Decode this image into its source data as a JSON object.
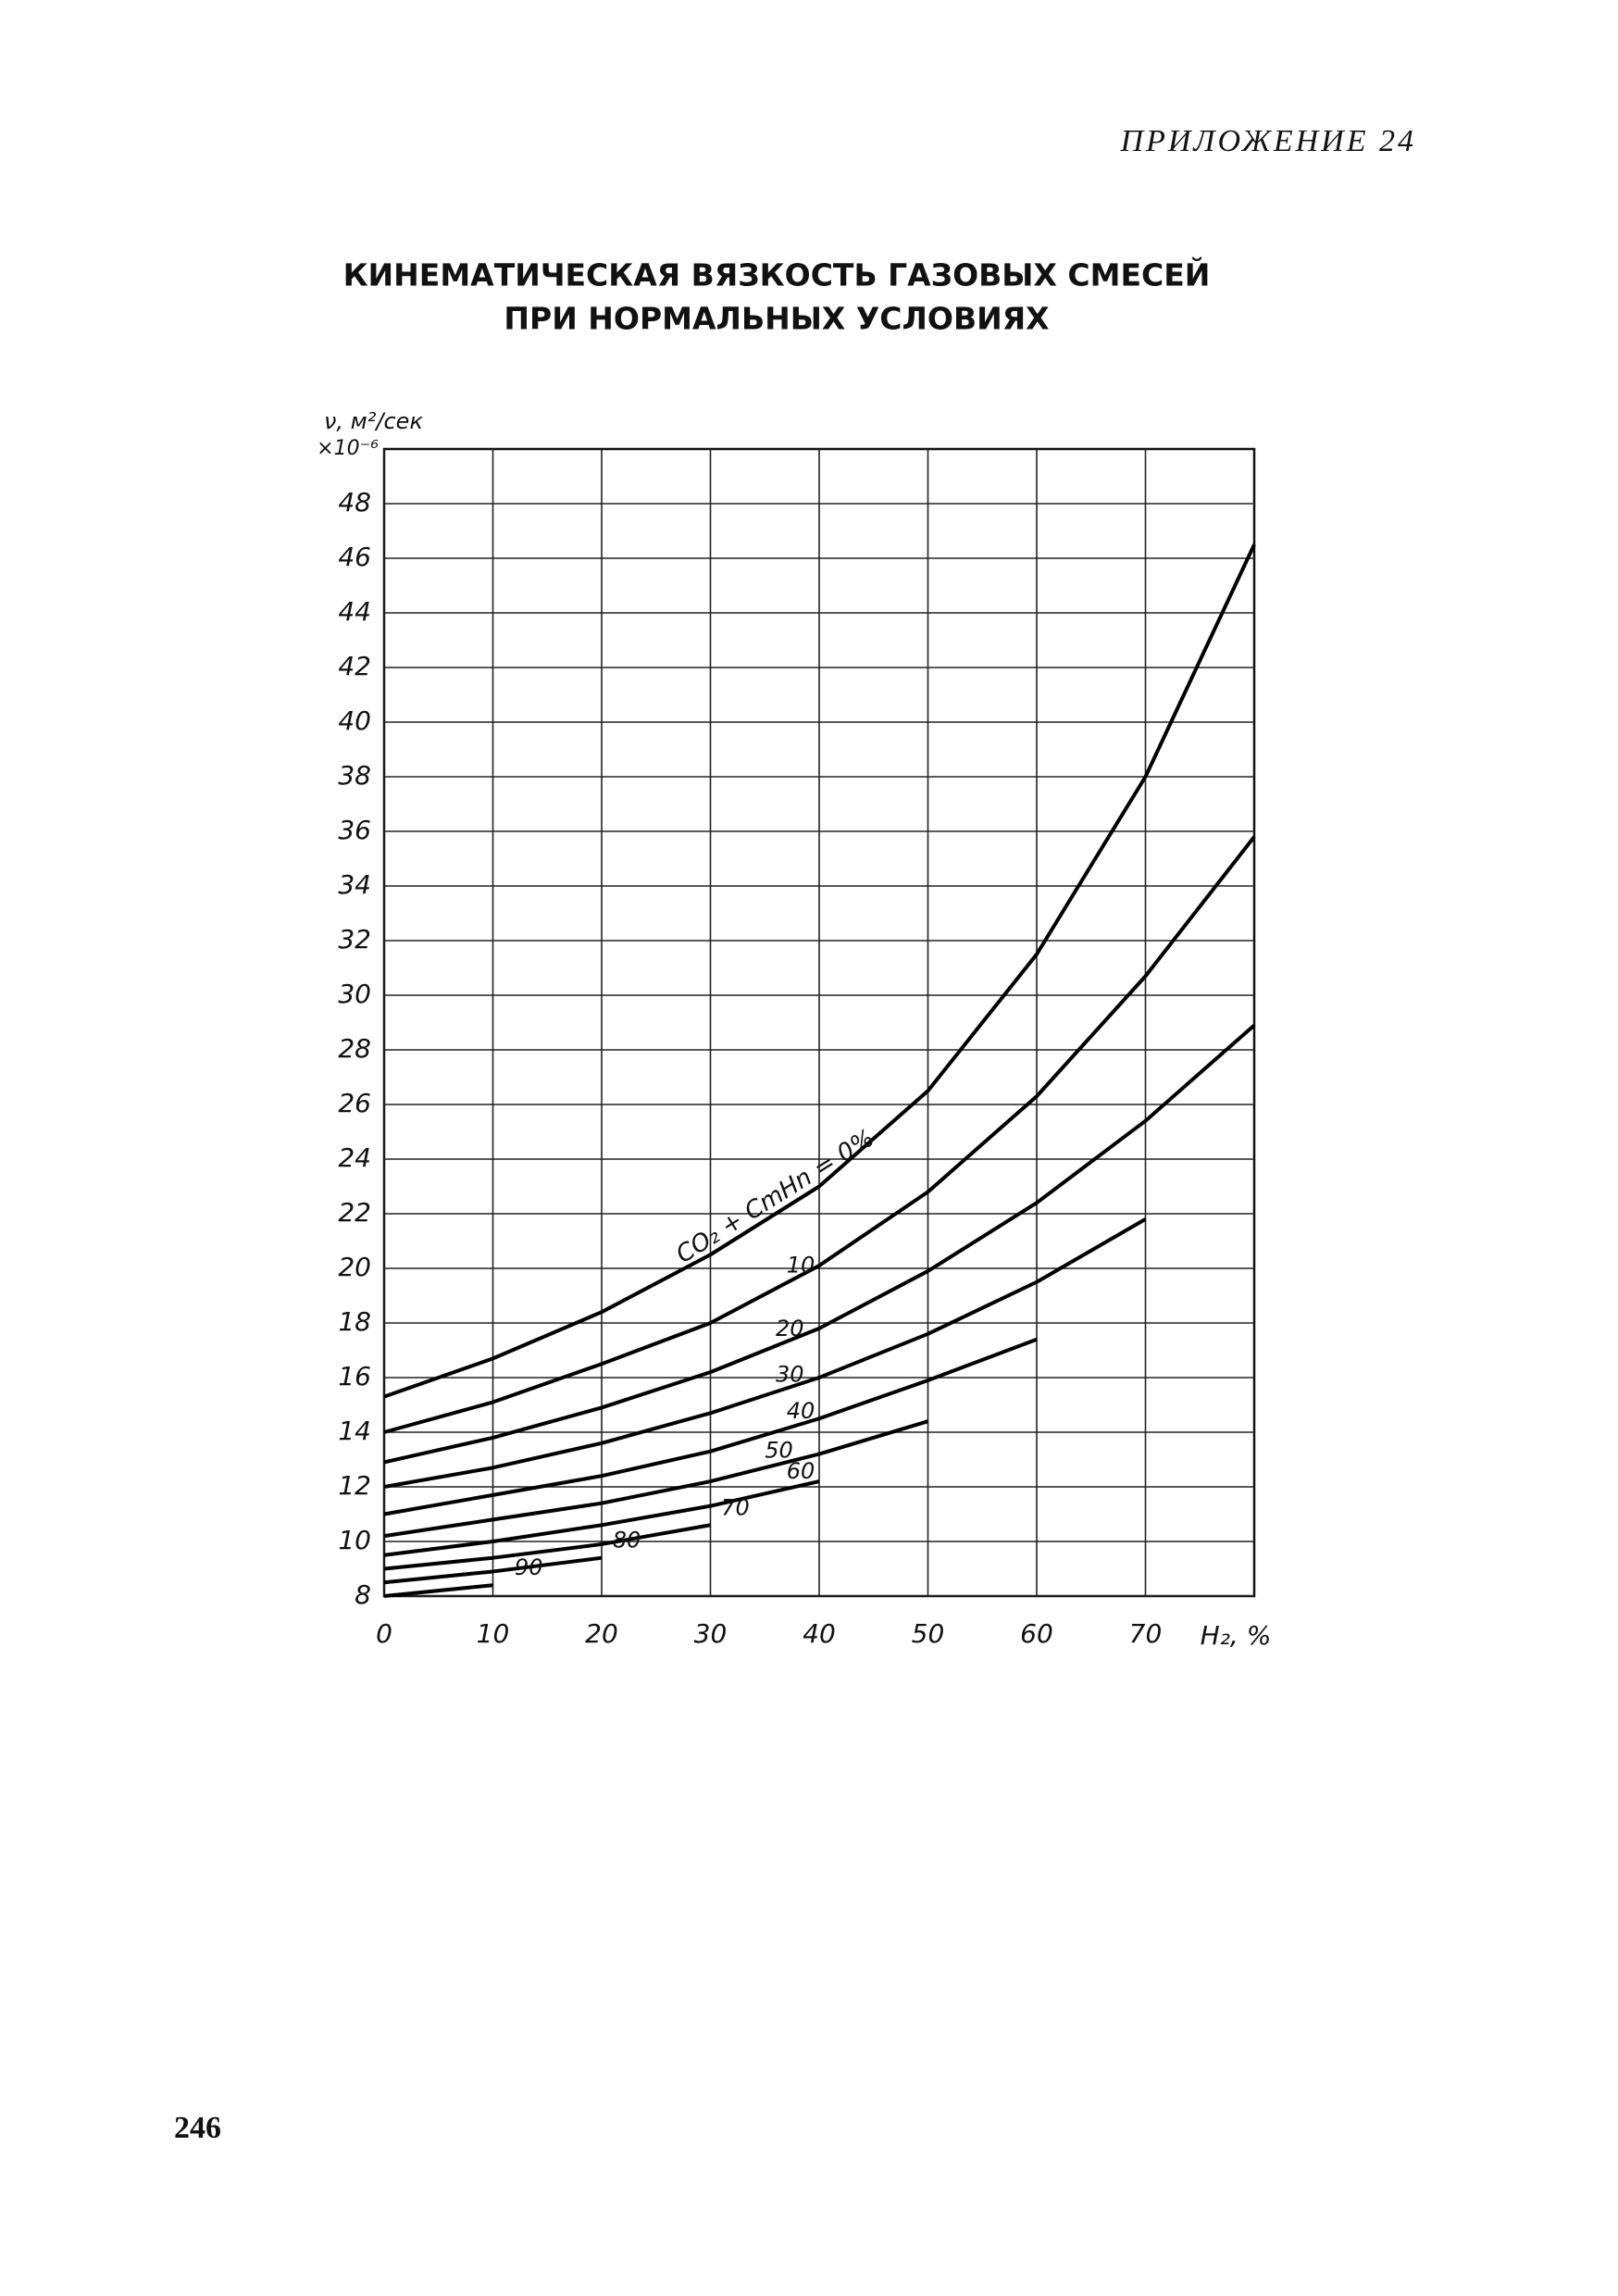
{
  "header": "ПРИЛОЖЕНИЕ 24",
  "page_number": "246",
  "chart_data": {
    "type": "line",
    "title": [
      "КИНЕМАТИЧЕСКАЯ ВЯЗКОСТЬ ГАЗОВЫХ СМЕСЕЙ",
      "ПРИ НОРМАЛЬНЫХ УСЛОВИЯХ"
    ],
    "y_label": "ν, м²/сек",
    "y_unit": "×10⁻⁶",
    "x_label": "H₂, %",
    "x": [
      0,
      10,
      20,
      30,
      40,
      50,
      60,
      70,
      80
    ],
    "xlim": [
      0,
      80
    ],
    "xticks": [
      0,
      10,
      20,
      30,
      40,
      50,
      60,
      70
    ],
    "ylim": [
      8,
      50
    ],
    "yticks": [
      8,
      10,
      12,
      14,
      16,
      18,
      20,
      22,
      24,
      26,
      28,
      30,
      32,
      34,
      36,
      38,
      40,
      42,
      44,
      46,
      48
    ],
    "grid": true,
    "series": [
      {
        "name": "CO₂ + CmHn = 0%",
        "color": "#000000",
        "values": [
          15.3,
          16.7,
          18.4,
          20.5,
          23.0,
          26.5,
          31.5,
          38.0,
          46.5
        ]
      },
      {
        "name": "10",
        "color": "#000000",
        "values": [
          14.0,
          15.1,
          16.5,
          18.0,
          20.1,
          22.8,
          26.3,
          30.7,
          35.8
        ]
      },
      {
        "name": "20",
        "color": "#000000",
        "values": [
          12.9,
          13.8,
          14.9,
          16.2,
          17.8,
          19.9,
          22.4,
          25.4,
          28.9
        ]
      },
      {
        "name": "30",
        "color": "#000000",
        "values": [
          12.0,
          12.7,
          13.6,
          14.7,
          16.0,
          17.6,
          19.5,
          21.8,
          null
        ]
      },
      {
        "name": "40",
        "color": "#000000",
        "values": [
          11.0,
          11.7,
          12.4,
          13.3,
          14.5,
          15.9,
          17.4,
          null,
          null
        ]
      },
      {
        "name": "50",
        "color": "#000000",
        "values": [
          10.2,
          10.8,
          11.4,
          12.2,
          13.2,
          14.4,
          null,
          null,
          null
        ]
      },
      {
        "name": "60",
        "color": "#000000",
        "values": [
          9.5,
          10.0,
          10.6,
          11.3,
          12.2,
          null,
          null,
          null,
          null
        ]
      },
      {
        "name": "70",
        "color": "#000000",
        "values": [
          9.0,
          9.4,
          9.9,
          10.6,
          null,
          null,
          null,
          null,
          null
        ]
      },
      {
        "name": "80",
        "color": "#000000",
        "values": [
          8.5,
          8.9,
          9.4,
          null,
          null,
          null,
          null,
          null,
          null
        ]
      },
      {
        "name": "90",
        "color": "#000000",
        "values": [
          8.0,
          8.4,
          null,
          null,
          null,
          null,
          null,
          null,
          null
        ]
      }
    ]
  }
}
